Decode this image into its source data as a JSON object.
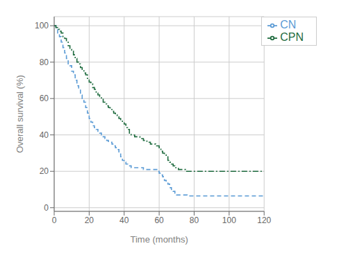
{
  "chart_data": {
    "type": "step",
    "xlabel": "Time (months)",
    "ylabel": "Overall survival (%)",
    "xlim": [
      0,
      120
    ],
    "ylim": [
      -2,
      105
    ],
    "xticks": [
      0,
      20,
      40,
      60,
      80,
      100,
      120
    ],
    "yticks": [
      0,
      20,
      40,
      60,
      80,
      100
    ],
    "grid": true,
    "legend": "upper right",
    "series": [
      {
        "name": "CN",
        "color": "#5b9bd5",
        "line_style": "dashed",
        "x": [
          0,
          1,
          2,
          3,
          4,
          5,
          6,
          7,
          8,
          9,
          10,
          11,
          12,
          13,
          14,
          15,
          16,
          17,
          18,
          19,
          20,
          21,
          22,
          23,
          24,
          25,
          26,
          27,
          28,
          29,
          30,
          31,
          32,
          33,
          34,
          35,
          36,
          37,
          38,
          39,
          40,
          41,
          42,
          43,
          44,
          45,
          46,
          47,
          48,
          49,
          50,
          51,
          52,
          53,
          54,
          55,
          56,
          57,
          58,
          59,
          60,
          61,
          62,
          63,
          64,
          65,
          66,
          67,
          68,
          69,
          70,
          71,
          72,
          73,
          74,
          75,
          76,
          120
        ],
        "values": [
          100,
          98,
          96,
          94,
          91,
          88,
          85,
          82,
          79,
          78,
          75,
          73,
          70,
          67,
          65,
          62,
          60,
          58,
          55,
          52,
          49,
          47,
          45,
          44,
          43,
          42,
          41,
          40,
          39,
          38,
          37,
          36,
          36,
          35,
          34,
          33,
          32,
          30,
          28,
          26,
          25,
          24,
          23,
          23,
          22,
          22,
          22,
          22,
          22,
          22,
          22,
          21,
          21,
          21,
          21,
          21,
          21,
          21,
          21,
          20,
          19,
          18,
          17,
          15,
          14,
          13,
          11,
          10,
          9,
          8,
          7,
          7,
          7,
          7,
          7,
          7,
          6.5,
          6.5
        ]
      },
      {
        "name": "CPN",
        "color": "#1e6b3e",
        "line_style": "dashdot",
        "x": [
          0,
          1,
          2,
          3,
          4,
          5,
          6,
          7,
          8,
          9,
          10,
          11,
          12,
          13,
          14,
          15,
          16,
          17,
          18,
          19,
          20,
          21,
          22,
          23,
          24,
          25,
          26,
          27,
          28,
          29,
          30,
          31,
          32,
          33,
          34,
          35,
          36,
          37,
          38,
          39,
          40,
          41,
          42,
          43,
          44,
          45,
          46,
          47,
          48,
          49,
          50,
          51,
          52,
          53,
          54,
          55,
          56,
          57,
          58,
          59,
          60,
          61,
          62,
          63,
          64,
          65,
          66,
          67,
          68,
          69,
          70,
          71,
          72,
          73,
          74,
          75,
          76,
          77,
          78,
          79,
          80,
          120
        ],
        "values": [
          100,
          99,
          98,
          97,
          96,
          94,
          93,
          91,
          89,
          87,
          86,
          84,
          82,
          80,
          79,
          77,
          76,
          74,
          73,
          71,
          69,
          68,
          66,
          65,
          63,
          62,
          61,
          60,
          58,
          57,
          56,
          55,
          54,
          53,
          52,
          51,
          50,
          49,
          48,
          47,
          46,
          44,
          43,
          41,
          40,
          40,
          39,
          39,
          39,
          38,
          38,
          37,
          37,
          36,
          36,
          35,
          35,
          35,
          34,
          34,
          33,
          31,
          30,
          29,
          28,
          26,
          25,
          24,
          23,
          22,
          22,
          21,
          21,
          21,
          21,
          20,
          20,
          20,
          20,
          20,
          20,
          20
        ]
      }
    ]
  }
}
